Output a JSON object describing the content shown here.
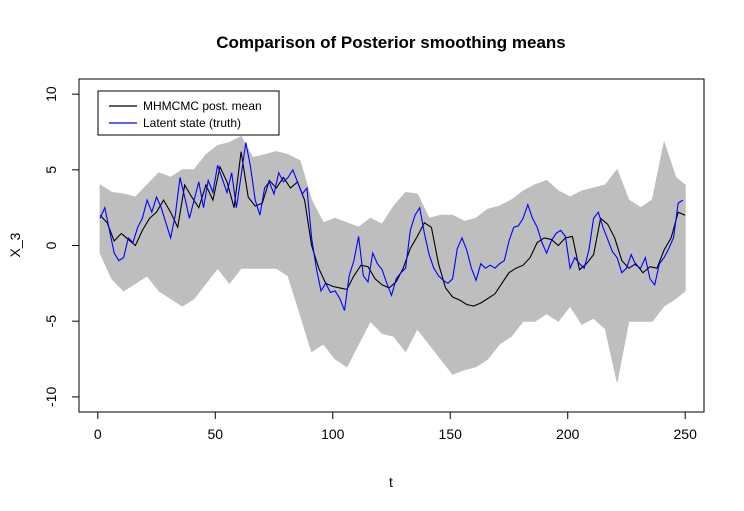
{
  "chart_data": {
    "type": "line",
    "title": "Comparison of Posterior smoothing means",
    "xlabel": "t",
    "ylabel": "X_3",
    "xlim": [
      -8,
      258
    ],
    "ylim": [
      -11,
      11
    ],
    "xticks": [
      0,
      50,
      100,
      150,
      200,
      250
    ],
    "yticks": [
      -10,
      -5,
      0,
      5,
      10
    ],
    "grid": false,
    "legend_position": "top-left",
    "band": {
      "color": "#bebebe",
      "x": [
        1,
        6,
        11,
        16,
        21,
        26,
        31,
        36,
        41,
        46,
        51,
        56,
        61,
        66,
        71,
        76,
        81,
        86,
        91,
        96,
        101,
        106,
        111,
        116,
        121,
        126,
        131,
        136,
        141,
        146,
        151,
        156,
        161,
        166,
        171,
        176,
        181,
        186,
        191,
        196,
        201,
        206,
        211,
        216,
        221,
        226,
        231,
        236,
        241,
        246,
        250
      ],
      "upper": [
        4,
        3.5,
        3.4,
        3.2,
        4,
        4.8,
        4.5,
        5,
        5,
        6,
        6.6,
        6.8,
        7.2,
        5.8,
        6,
        6.2,
        6,
        5.6,
        3,
        1.5,
        1.8,
        1.5,
        1.2,
        1.8,
        1.4,
        2.6,
        3.5,
        3.4,
        1.8,
        2,
        2,
        1.6,
        1.8,
        2.4,
        2.6,
        3,
        3.6,
        4,
        4.3,
        3.6,
        3.2,
        3.6,
        3.8,
        4,
        5,
        3,
        2.5,
        3,
        6.8,
        4.5,
        4
      ],
      "lower": [
        -0.5,
        -2.2,
        -3,
        -2.5,
        -2,
        -3,
        -3.5,
        -4,
        -3.5,
        -2.5,
        -1.5,
        -2.5,
        -1.5,
        -1.5,
        -1.5,
        -1.5,
        -2,
        -4.5,
        -7,
        -6.5,
        -7.5,
        -8,
        -6.5,
        -5,
        -5.8,
        -6,
        -7,
        -5.5,
        -6.5,
        -7.5,
        -8.5,
        -8.2,
        -8,
        -7.5,
        -6.5,
        -6,
        -5,
        -5,
        -4.5,
        -5,
        -4,
        -5.2,
        -4.8,
        -5.5,
        -9,
        -5,
        -5,
        -5,
        -4,
        -3.5,
        -3
      ]
    },
    "series": [
      {
        "name": "MHMCMC post. mean",
        "color": "#000000",
        "x": [
          1,
          4,
          7,
          10,
          13,
          16,
          19,
          22,
          25,
          28,
          31,
          34,
          37,
          40,
          43,
          46,
          49,
          52,
          55,
          58,
          61,
          64,
          67,
          70,
          73,
          76,
          79,
          82,
          85,
          88,
          91,
          94,
          97,
          100,
          103,
          106,
          109,
          112,
          115,
          118,
          121,
          124,
          127,
          130,
          133,
          136,
          139,
          142,
          145,
          148,
          151,
          154,
          157,
          160,
          163,
          166,
          169,
          172,
          175,
          178,
          181,
          184,
          187,
          190,
          193,
          196,
          199,
          202,
          205,
          208,
          211,
          214,
          217,
          220,
          223,
          226,
          229,
          232,
          235,
          238,
          241,
          244,
          247,
          250
        ],
        "y": [
          2,
          1.5,
          0.3,
          0.8,
          0.4,
          0,
          1,
          1.8,
          2.2,
          3,
          2.2,
          1.2,
          4,
          3.2,
          2.5,
          4,
          3,
          5.2,
          4.2,
          2.5,
          6.2,
          3.2,
          2.6,
          2.8,
          4.3,
          3.8,
          4.5,
          3.8,
          4.2,
          3,
          0,
          -1.5,
          -2.5,
          -2.7,
          -2.8,
          -2.9,
          -2,
          -1.3,
          -1.4,
          -2.2,
          -2.6,
          -2.8,
          -2.4,
          -1.5,
          -0.2,
          0.6,
          1.5,
          1.2,
          -1.2,
          -2.8,
          -3.4,
          -3.6,
          -3.9,
          -4,
          -3.8,
          -3.5,
          -3.2,
          -2.5,
          -1.8,
          -1.5,
          -1.3,
          -0.8,
          0.2,
          0.5,
          0.4,
          0,
          0.5,
          0.6,
          -1.6,
          -1.2,
          -0.6,
          1.8,
          1.4,
          0.5,
          -1,
          -1.5,
          -1.2,
          -1.8,
          -1.4,
          -1.5,
          -0.3,
          0.5,
          2.2,
          2
        ]
      },
      {
        "name": "Latent state (truth)",
        "color": "#0000ff",
        "x": [
          1,
          3,
          5,
          7,
          9,
          11,
          13,
          15,
          17,
          19,
          21,
          23,
          25,
          27,
          29,
          31,
          33,
          35,
          37,
          39,
          41,
          43,
          45,
          47,
          49,
          51,
          53,
          55,
          57,
          59,
          61,
          63,
          65,
          67,
          69,
          71,
          73,
          75,
          77,
          79,
          81,
          83,
          85,
          87,
          89,
          91,
          93,
          95,
          97,
          99,
          101,
          103,
          105,
          107,
          109,
          111,
          113,
          115,
          117,
          119,
          121,
          123,
          125,
          127,
          129,
          131,
          133,
          135,
          137,
          139,
          141,
          143,
          145,
          147,
          149,
          151,
          153,
          155,
          157,
          159,
          161,
          163,
          165,
          167,
          169,
          171,
          173,
          175,
          177,
          179,
          181,
          183,
          185,
          187,
          189,
          191,
          193,
          195,
          197,
          199,
          201,
          203,
          205,
          207,
          209,
          211,
          213,
          215,
          217,
          219,
          221,
          223,
          225,
          227,
          229,
          231,
          233,
          235,
          237,
          239,
          241,
          243,
          245,
          247,
          249
        ],
        "y": [
          1.8,
          2.5,
          1,
          -0.5,
          -1,
          -0.8,
          0.5,
          0.2,
          1.2,
          1.8,
          3,
          2.2,
          3.2,
          2.5,
          1.5,
          0.5,
          2,
          4.5,
          3.2,
          1.8,
          3,
          4.2,
          2.5,
          4.3,
          3.5,
          5.3,
          4.4,
          3.5,
          4.8,
          2.5,
          4.6,
          6.8,
          5.2,
          3,
          2,
          3.8,
          4.2,
          3.4,
          4.8,
          4.2,
          4.5,
          5,
          4.2,
          3.4,
          3.8,
          0.5,
          -1.5,
          -3,
          -2.5,
          -3.1,
          -3,
          -3.5,
          -4.3,
          -2,
          -1,
          0.6,
          -2,
          -2.4,
          -0.5,
          -1.2,
          -1.6,
          -2.5,
          -3.3,
          -2.2,
          -1.8,
          -1.5,
          1,
          2,
          2.5,
          0.8,
          -0.6,
          -1.5,
          -2,
          -2.3,
          -2.5,
          -2.2,
          -0.2,
          0.5,
          -0.3,
          -1.5,
          -2.3,
          -1.2,
          -1.5,
          -1.3,
          -1.5,
          -1.2,
          -1,
          0.3,
          1.2,
          1.3,
          1.8,
          2.7,
          1.8,
          1.2,
          0.2,
          -0.5,
          0.3,
          0.8,
          1,
          0.6,
          -1.5,
          -0.8,
          -1.2,
          -1.5,
          -0.3,
          1.8,
          2.2,
          1.2,
          0.4,
          -0.4,
          -0.8,
          -1.8,
          -1.5,
          -0.6,
          -1.3,
          -1.5,
          -0.8,
          -2.2,
          -2.6,
          -1.2,
          -0.8,
          -0.2,
          0.5,
          2.8,
          3
        ]
      }
    ]
  }
}
